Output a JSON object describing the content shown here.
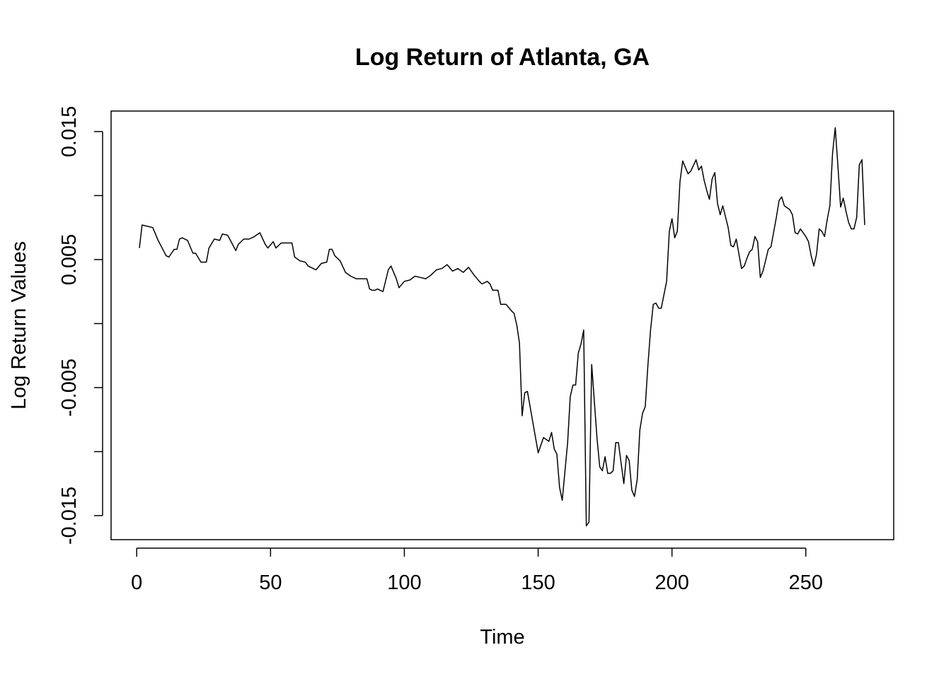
{
  "chart_data": {
    "type": "line",
    "title": "Log Return of Atlanta, GA",
    "xlabel": "Time",
    "ylabel": "Log Return Values",
    "xlim": [
      1,
      272
    ],
    "ylim": [
      -0.0155,
      0.0152
    ],
    "x_ticks": [
      0,
      50,
      100,
      150,
      200,
      250
    ],
    "x_tick_labels": [
      "0",
      "50",
      "100",
      "150",
      "200",
      "250"
    ],
    "y_ticks": [
      -0.015,
      -0.01,
      -0.005,
      0,
      0.005,
      0.01,
      0.015
    ],
    "y_tick_labels": [
      "-0.015",
      "",
      "-0.005",
      "",
      "0.005",
      "",
      "0.015"
    ],
    "grid": false,
    "legend": "none",
    "line_color": "#000000",
    "series": [
      {
        "points": [
          [
            1,
            0.0059
          ],
          [
            2,
            0.0077
          ],
          [
            4,
            0.0076
          ],
          [
            6,
            0.0075
          ],
          [
            8,
            0.0065
          ],
          [
            10,
            0.0057
          ],
          [
            11,
            0.0053
          ],
          [
            12,
            0.0052
          ],
          [
            14,
            0.0058
          ],
          [
            15,
            0.0058
          ],
          [
            16,
            0.0066
          ],
          [
            17,
            0.0067
          ],
          [
            19,
            0.0065
          ],
          [
            21,
            0.0055
          ],
          [
            22,
            0.0055
          ],
          [
            24,
            0.0048
          ],
          [
            26,
            0.0048
          ],
          [
            27,
            0.0059
          ],
          [
            29,
            0.0066
          ],
          [
            31,
            0.0065
          ],
          [
            32,
            0.007
          ],
          [
            34,
            0.0069
          ],
          [
            36,
            0.0061
          ],
          [
            37,
            0.0057
          ],
          [
            38,
            0.0062
          ],
          [
            40,
            0.0066
          ],
          [
            42,
            0.0066
          ],
          [
            44,
            0.0068
          ],
          [
            46,
            0.0071
          ],
          [
            48,
            0.0062
          ],
          [
            49,
            0.0059
          ],
          [
            51,
            0.0064
          ],
          [
            52,
            0.0059
          ],
          [
            54,
            0.0063
          ],
          [
            56,
            0.0063
          ],
          [
            58,
            0.0063
          ],
          [
            59,
            0.0052
          ],
          [
            61,
            0.0049
          ],
          [
            63,
            0.0048
          ],
          [
            64,
            0.0045
          ],
          [
            66,
            0.0043
          ],
          [
            67,
            0.0042
          ],
          [
            69,
            0.0047
          ],
          [
            71,
            0.0048
          ],
          [
            72,
            0.0058
          ],
          [
            73,
            0.0058
          ],
          [
            74,
            0.0053
          ],
          [
            76,
            0.0049
          ],
          [
            78,
            0.004
          ],
          [
            80,
            0.0037
          ],
          [
            82,
            0.0035
          ],
          [
            84,
            0.0035
          ],
          [
            86,
            0.0035
          ],
          [
            87,
            0.0027
          ],
          [
            88,
            0.0026
          ],
          [
            89,
            0.0026
          ],
          [
            90,
            0.0027
          ],
          [
            92,
            0.0025
          ],
          [
            94,
            0.0042
          ],
          [
            95,
            0.0045
          ],
          [
            97,
            0.0035
          ],
          [
            98,
            0.0028
          ],
          [
            100,
            0.0033
          ],
          [
            102,
            0.0034
          ],
          [
            104,
            0.0037
          ],
          [
            106,
            0.0036
          ],
          [
            108,
            0.0035
          ],
          [
            110,
            0.0038
          ],
          [
            112,
            0.0042
          ],
          [
            114,
            0.0043
          ],
          [
            116,
            0.0046
          ],
          [
            118,
            0.0041
          ],
          [
            120,
            0.0043
          ],
          [
            122,
            0.004
          ],
          [
            124,
            0.0044
          ],
          [
            126,
            0.0038
          ],
          [
            128,
            0.0033
          ],
          [
            129,
            0.0031
          ],
          [
            131,
            0.0033
          ],
          [
            132,
            0.0031
          ],
          [
            133,
            0.0026
          ],
          [
            135,
            0.0026
          ],
          [
            136,
            0.0015
          ],
          [
            138,
            0.0015
          ],
          [
            140,
            0.001
          ],
          [
            141,
            0.0008
          ],
          [
            142,
            -0.0001
          ],
          [
            143,
            -0.0015
          ],
          [
            144,
            -0.0072
          ],
          [
            145,
            -0.0054
          ],
          [
            146,
            -0.0053
          ],
          [
            148,
            -0.0077
          ],
          [
            150,
            -0.0101
          ],
          [
            152,
            -0.0089
          ],
          [
            154,
            -0.0092
          ],
          [
            155,
            -0.0085
          ],
          [
            156,
            -0.0098
          ],
          [
            157,
            -0.0102
          ],
          [
            158,
            -0.0128
          ],
          [
            159,
            -0.0138
          ],
          [
            161,
            -0.0093
          ],
          [
            162,
            -0.0057
          ],
          [
            163,
            -0.0048
          ],
          [
            164,
            -0.0048
          ],
          [
            165,
            -0.0023
          ],
          [
            166,
            -0.0016
          ],
          [
            167,
            -0.0005
          ],
          [
            168,
            -0.0158
          ],
          [
            169,
            -0.0155
          ],
          [
            170,
            -0.0032
          ],
          [
            172,
            -0.009
          ],
          [
            173,
            -0.0112
          ],
          [
            174,
            -0.0115
          ],
          [
            175,
            -0.0104
          ],
          [
            176,
            -0.0117
          ],
          [
            177,
            -0.0117
          ],
          [
            178,
            -0.0115
          ],
          [
            179,
            -0.0093
          ],
          [
            180,
            -0.0093
          ],
          [
            181,
            -0.0109
          ],
          [
            182,
            -0.0125
          ],
          [
            183,
            -0.0103
          ],
          [
            184,
            -0.0107
          ],
          [
            185,
            -0.013
          ],
          [
            186,
            -0.0135
          ],
          [
            187,
            -0.0122
          ],
          [
            188,
            -0.0083
          ],
          [
            189,
            -0.007
          ],
          [
            190,
            -0.0065
          ],
          [
            191,
            -0.0033
          ],
          [
            192,
            -0.0005
          ],
          [
            193,
            0.0015
          ],
          [
            194,
            0.0016
          ],
          [
            195,
            0.0012
          ],
          [
            196,
            0.0012
          ],
          [
            198,
            0.0033
          ],
          [
            199,
            0.0072
          ],
          [
            200,
            0.0082
          ],
          [
            201,
            0.0067
          ],
          [
            202,
            0.0072
          ],
          [
            203,
            0.0111
          ],
          [
            204,
            0.0127
          ],
          [
            205,
            0.0122
          ],
          [
            206,
            0.0117
          ],
          [
            207,
            0.0119
          ],
          [
            209,
            0.0128
          ],
          [
            210,
            0.012
          ],
          [
            211,
            0.0123
          ],
          [
            212,
            0.0112
          ],
          [
            213,
            0.0104
          ],
          [
            214,
            0.0097
          ],
          [
            215,
            0.0113
          ],
          [
            216,
            0.0118
          ],
          [
            217,
            0.0094
          ],
          [
            218,
            0.0085
          ],
          [
            219,
            0.0092
          ],
          [
            221,
            0.0075
          ],
          [
            222,
            0.0061
          ],
          [
            223,
            0.006
          ],
          [
            224,
            0.0066
          ],
          [
            226,
            0.0043
          ],
          [
            227,
            0.0045
          ],
          [
            228,
            0.0051
          ],
          [
            229,
            0.0056
          ],
          [
            230,
            0.0058
          ],
          [
            231,
            0.0068
          ],
          [
            232,
            0.0064
          ],
          [
            233,
            0.0036
          ],
          [
            234,
            0.0041
          ],
          [
            236,
            0.0058
          ],
          [
            237,
            0.006
          ],
          [
            239,
            0.0083
          ],
          [
            240,
            0.0096
          ],
          [
            241,
            0.0099
          ],
          [
            242,
            0.0092
          ],
          [
            244,
            0.0089
          ],
          [
            245,
            0.0085
          ],
          [
            246,
            0.0071
          ],
          [
            247,
            0.007
          ],
          [
            248,
            0.0074
          ],
          [
            250,
            0.0068
          ],
          [
            251,
            0.0064
          ],
          [
            252,
            0.0053
          ],
          [
            253,
            0.0045
          ],
          [
            254,
            0.0054
          ],
          [
            255,
            0.0074
          ],
          [
            256,
            0.0072
          ],
          [
            257,
            0.0068
          ],
          [
            258,
            0.0081
          ],
          [
            259,
            0.0092
          ],
          [
            260,
            0.0133
          ],
          [
            261,
            0.0153
          ],
          [
            262,
            0.0123
          ],
          [
            263,
            0.0091
          ],
          [
            264,
            0.0098
          ],
          [
            265,
            0.0088
          ],
          [
            266,
            0.0079
          ],
          [
            267,
            0.0074
          ],
          [
            268,
            0.0074
          ],
          [
            269,
            0.0083
          ],
          [
            270,
            0.0124
          ],
          [
            271,
            0.0128
          ],
          [
            272,
            0.0077
          ]
        ]
      }
    ]
  }
}
